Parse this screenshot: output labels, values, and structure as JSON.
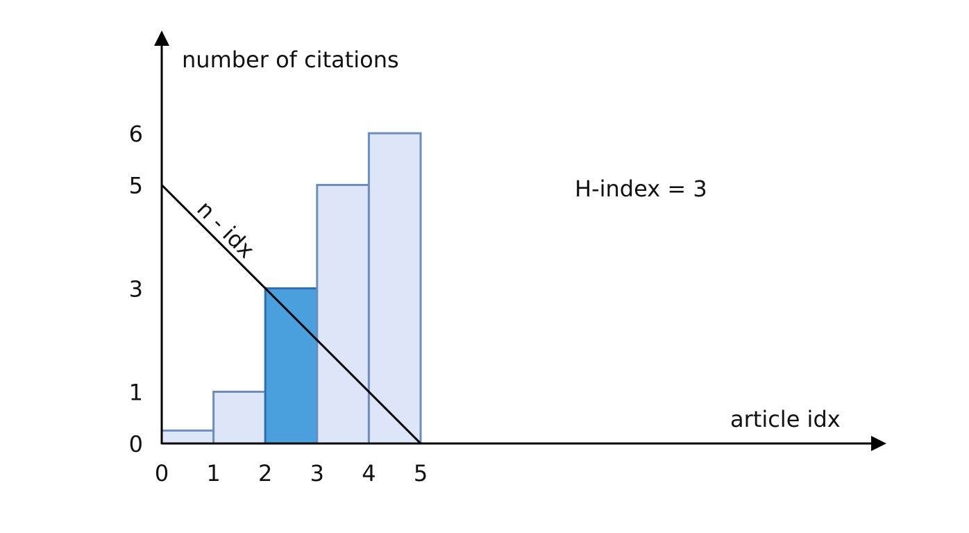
{
  "chart_data": {
    "type": "bar",
    "x_ticks": [
      "0",
      "1",
      "2",
      "3",
      "4",
      "5"
    ],
    "y_ticks": [
      {
        "value": 0,
        "label": "0"
      },
      {
        "value": 1,
        "label": "1"
      },
      {
        "value": 3,
        "label": "3"
      },
      {
        "value": 5,
        "label": "5"
      },
      {
        "value": 6,
        "label": "6"
      }
    ],
    "values": [
      0.25,
      1,
      3,
      5,
      6
    ],
    "highlight_index": 2,
    "xlabel": "article idx",
    "ylabel": "number of citations",
    "xlim": [
      0,
      5
    ],
    "ylim": [
      0,
      6
    ],
    "line": {
      "label": "n - idx",
      "from": [
        0,
        5
      ],
      "to": [
        5,
        0
      ]
    },
    "annotation": "H-index = 3",
    "grid": false,
    "colors": {
      "bar_fill": "#dce6f8",
      "bar_stroke": "#6c8ebf",
      "highlight_fill": "#4aa0dd",
      "highlight_stroke": "#2f6fb0",
      "axis": "#000000"
    }
  }
}
